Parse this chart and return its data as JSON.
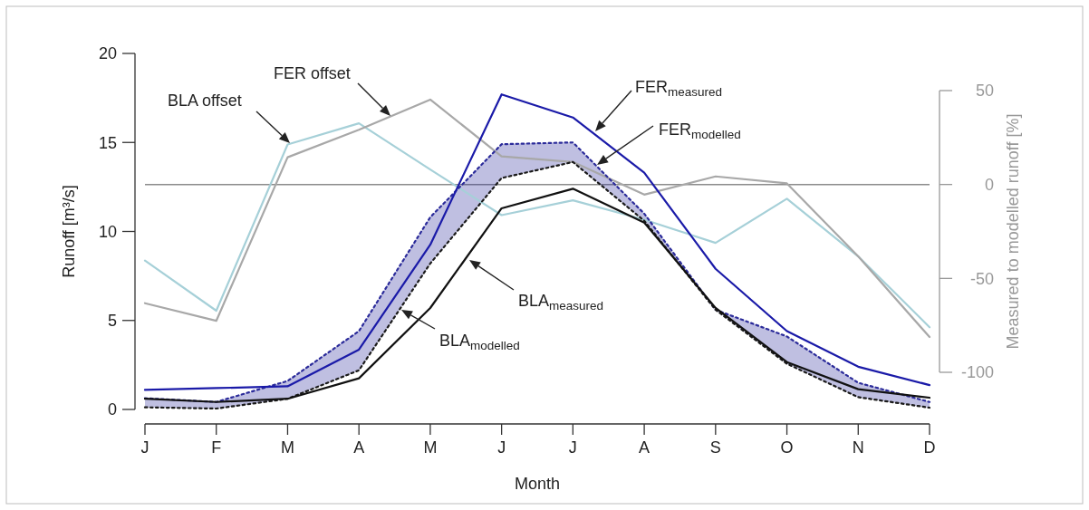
{
  "chart_data": {
    "type": "line",
    "xlabel": "Month",
    "ylabel": "Runoff [m³/s]",
    "y2label": "Measured to modelled runoff [%]",
    "categories": [
      "J",
      "F",
      "M",
      "A",
      "M",
      "J",
      "J",
      "A",
      "S",
      "O",
      "N",
      "D"
    ],
    "ylim": [
      0,
      20
    ],
    "yticks": [
      0,
      5,
      10,
      15,
      20
    ],
    "y2lim": [
      -100,
      50
    ],
    "y2ticks": [
      -100,
      -50,
      0,
      50
    ],
    "grid": false,
    "marker": "none",
    "annotations": [
      "BLA offset",
      "FER offset",
      "FER$_{modelled}$",
      "BLA$_{modelled}$",
      "BLA$_{measured}$",
      "FER$_{measured}$"
    ],
    "ref_lines": [
      {
        "axis": "y2",
        "value": 0,
        "color": "#8c8c8c"
      }
    ],
    "series": [
      {
        "color": "#a6d0d8",
        "axis": "y2",
        "line_style": "solid",
        "values": [
          -40.5,
          -67.2,
          21.3,
          32.6,
          8.0,
          -16.3,
          -8.4,
          -18.7,
          -31.1,
          -7.6,
          -38.3,
          -76
        ]
      },
      {
        "color": "#a8a8a8",
        "axis": "y2",
        "line_style": "solid",
        "values": [
          -63.2,
          -72.6,
          14.5,
          29.1,
          45.2,
          15.0,
          12.0,
          -5.4,
          4.3,
          0.6,
          -38.3,
          -81.2
        ]
      },
      {
        "color": "#2b2b9a",
        "line_style": "dotted",
        "values": [
          0.63,
          0.42,
          1.6,
          4.4,
          10.8,
          14.9,
          15.0,
          11.0,
          5.6,
          4.1,
          1.5,
          0.42
        ],
        "lower": [
          0.12,
          0.05,
          0.6,
          2.2,
          8.2,
          13.0,
          13.9,
          10.6,
          5.6,
          2.57,
          0.69,
          0.1
        ],
        "upper": [
          0.63,
          0.42,
          1.6,
          4.4,
          10.8,
          14.9,
          15.0,
          11.0,
          5.6,
          4.1,
          1.5,
          0.42
        ]
      },
      {
        "color": "#1a1a1a",
        "line_style": "dotted",
        "values": [
          0.12,
          0.05,
          0.6,
          2.2,
          8.2,
          13.0,
          13.9,
          10.6,
          5.6,
          2.57,
          0.69,
          0.1
        ]
      },
      {
        "color": "#111111",
        "line_style": "solid",
        "values": [
          0.6,
          0.42,
          0.6,
          1.75,
          5.7,
          11.3,
          12.4,
          10.5,
          5.7,
          2.66,
          1.14,
          0.66
        ]
      },
      {
        "color": "#1a1aa8",
        "line_style": "solid",
        "values": [
          1.1,
          1.2,
          1.3,
          3.36,
          9.25,
          17.7,
          16.4,
          13.3,
          7.9,
          4.4,
          2.4,
          1.37
        ]
      }
    ]
  }
}
